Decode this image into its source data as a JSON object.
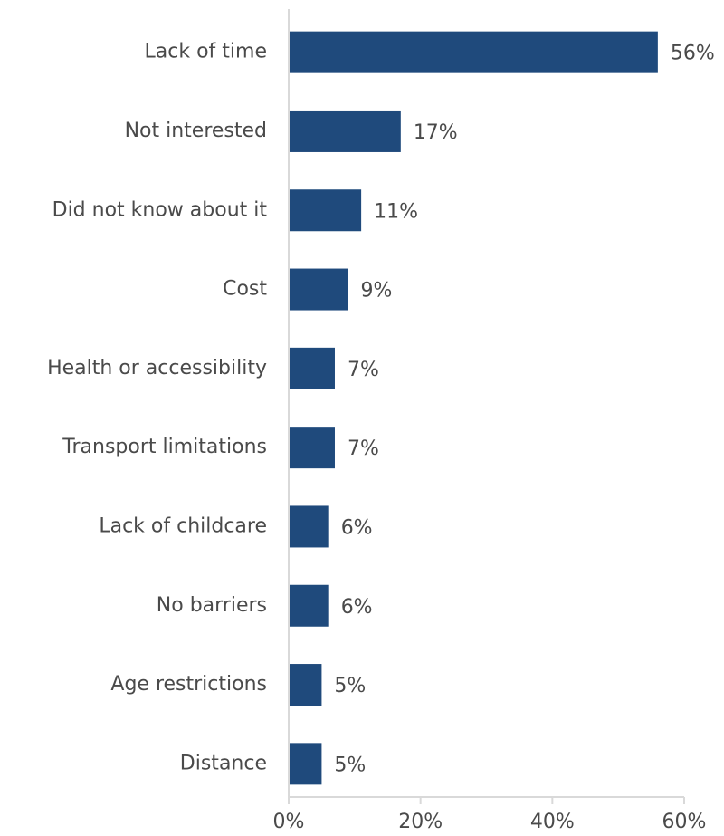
{
  "chart_data": {
    "type": "bar",
    "orientation": "horizontal",
    "categories": [
      "Lack of time",
      "Not interested",
      "Did not know about it",
      "Cost",
      "Health or accessibility",
      "Transport limitations",
      "Lack of childcare",
      "No barriers",
      "Age restrictions",
      "Distance"
    ],
    "values": [
      56,
      17,
      11,
      9,
      7,
      7,
      6,
      6,
      5,
      5
    ],
    "value_labels": [
      "56%",
      "17%",
      "11%",
      "9%",
      "7%",
      "7%",
      "6%",
      "6%",
      "5%",
      "5%"
    ],
    "xlim": [
      0,
      60
    ],
    "xticks": [
      0,
      20,
      40,
      60
    ],
    "xtick_labels": [
      "0%",
      "20%",
      "40%",
      "60%"
    ],
    "grid": false,
    "bar_color": "#1f4a7c",
    "axis_color": "#d9d9d9",
    "text_color": "#4a4a4a"
  }
}
